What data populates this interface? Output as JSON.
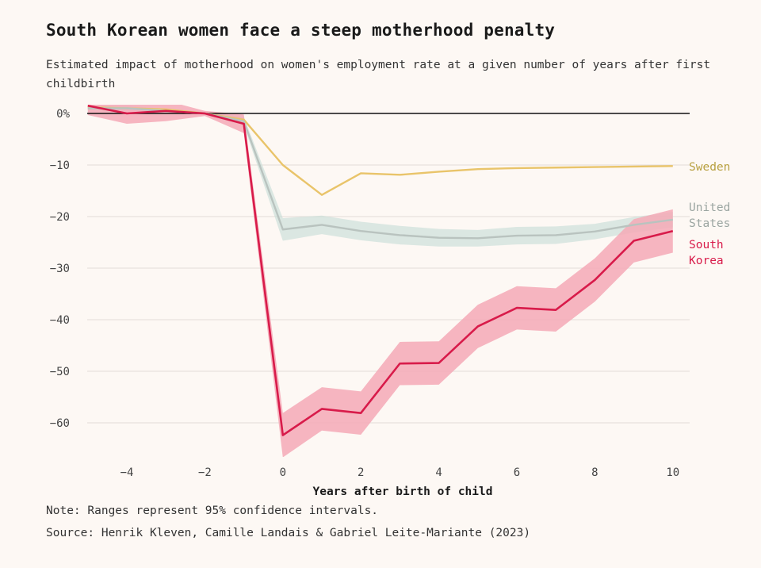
{
  "title": "South Korean women face a steep motherhood penalty",
  "subtitle": "Estimated impact of motherhood on women's employment rate at a given number of years after first childbirth",
  "note": "Note: Ranges represent 95% confidence intervals.",
  "source": "Source: Henrik Kleven, Camille Landais & Gabriel Leite-Mariante (2023)",
  "chart_data": {
    "type": "line",
    "title": "South Korean women face a steep motherhood penalty",
    "xlabel": "Years after birth of child",
    "ylabel": "",
    "xlim": [
      -5,
      10
    ],
    "ylim": [
      -65,
      0
    ],
    "x_ticks": [
      -4,
      -2,
      0,
      2,
      4,
      6,
      8,
      10
    ],
    "x_tick_labels": [
      "−4",
      "−2",
      "0",
      "2",
      "4",
      "6",
      "8",
      "10"
    ],
    "y_ticks": [
      0,
      -10,
      -20,
      -30,
      -40,
      -50,
      -60
    ],
    "y_tick_labels": [
      "0%",
      "−10",
      "−20",
      "−30",
      "−40",
      "−50",
      "−60"
    ],
    "grid": true,
    "legend_placement": "right, inline labels at line ends",
    "x": [
      -5,
      -4,
      -3,
      -2,
      -1,
      0,
      1,
      2,
      3,
      4,
      5,
      6,
      7,
      8,
      9,
      10
    ],
    "series": [
      {
        "name": "Sweden",
        "label_lines": [
          "Sweden"
        ],
        "color": "#e9c46a",
        "label_color": "#b8a040",
        "values": [
          1.2,
          1.0,
          0.8,
          0.0,
          -1.2,
          -10.0,
          -15.8,
          -11.6,
          -11.9,
          -11.3,
          -10.8,
          -10.6,
          -10.5,
          -10.4,
          -10.3,
          -10.2
        ],
        "ci_low": null,
        "ci_high": null
      },
      {
        "name": "United States",
        "label_lines": [
          "United",
          "States"
        ],
        "color": "#b9c3bf",
        "label_color": "#9ba5a1",
        "band_color": "#c5dcd6",
        "values": [
          1.0,
          1.0,
          0.5,
          0.0,
          -1.5,
          -22.5,
          -21.6,
          -22.8,
          -23.6,
          -24.1,
          -24.2,
          -23.7,
          -23.6,
          -22.9,
          -21.6,
          -20.6
        ],
        "ci_low": [
          0.6,
          0.5,
          0.1,
          -0.3,
          -2.3,
          -24.7,
          -23.4,
          -24.6,
          -25.4,
          -25.8,
          -25.8,
          -25.4,
          -25.3,
          -24.4,
          -23.1,
          -22.1
        ],
        "ci_high": [
          1.4,
          1.5,
          0.9,
          0.3,
          -0.7,
          -20.3,
          -19.8,
          -21.0,
          -21.8,
          -22.4,
          -22.6,
          -22.0,
          -21.9,
          -21.4,
          -20.1,
          -19.1
        ]
      },
      {
        "name": "South Korea",
        "label_lines": [
          "South",
          "Korea"
        ],
        "color": "#d81b4a",
        "label_color": "#d81b4a",
        "band_color": "#f4a9b6",
        "values": [
          1.5,
          0.0,
          0.5,
          0.0,
          -2.0,
          -62.4,
          -57.3,
          -58.1,
          -48.5,
          -48.4,
          -41.3,
          -37.7,
          -38.1,
          -32.3,
          -24.7,
          -22.8
        ],
        "ci_low": [
          -0.3,
          -2.0,
          -1.5,
          -0.5,
          -3.8,
          -66.7,
          -61.5,
          -62.3,
          -52.7,
          -52.6,
          -45.5,
          -41.9,
          -42.3,
          -36.5,
          -28.9,
          -27.0
        ],
        "ci_high": [
          3.3,
          2.0,
          2.5,
          0.5,
          -0.2,
          -58.1,
          -53.1,
          -53.9,
          -44.3,
          -44.2,
          -37.1,
          -33.5,
          -33.9,
          -28.1,
          -20.5,
          -18.6
        ]
      }
    ]
  }
}
